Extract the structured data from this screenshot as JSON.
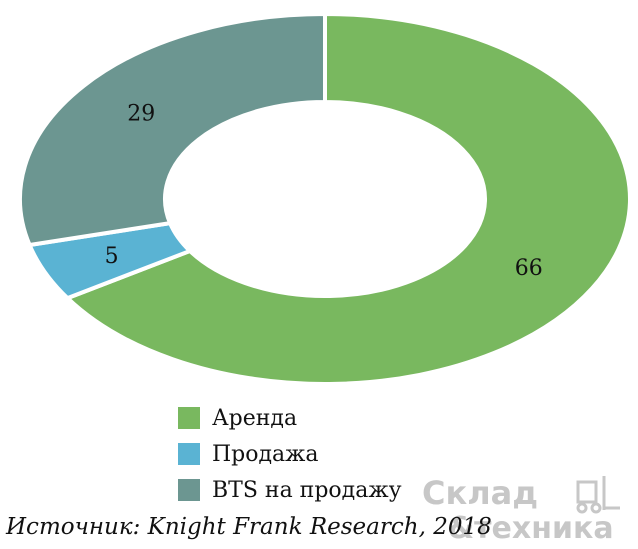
{
  "chart_data": {
    "type": "pie",
    "donut": true,
    "categories": [
      "Аренда",
      "Продажа",
      "BTS на продажу"
    ],
    "values": [
      66,
      5,
      29
    ],
    "colors": [
      "#79b85f",
      "#5ab3d3",
      "#6c9691"
    ],
    "legend_position": "bottom"
  },
  "source": "Источник: Knight Frank Research, 2018",
  "watermark": {
    "line1": "Склад",
    "line2": "&техника"
  }
}
